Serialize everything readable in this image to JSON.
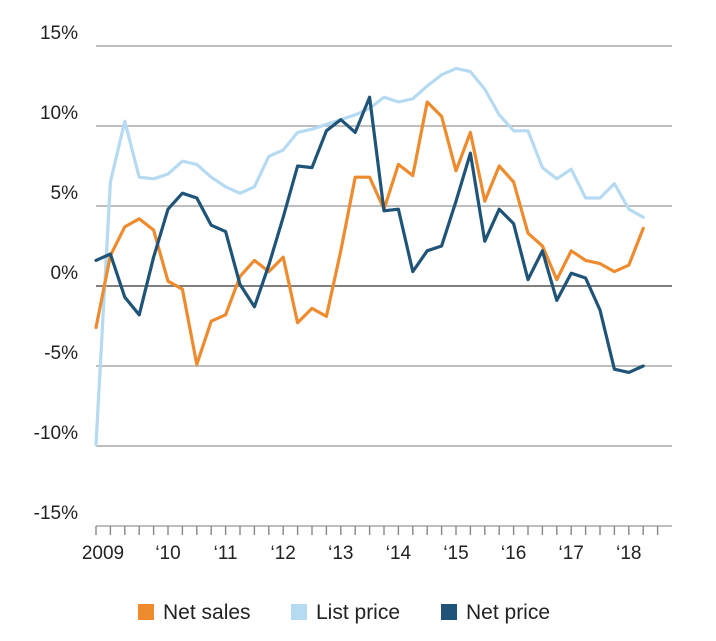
{
  "chart_data": {
    "type": "line",
    "y_tick_labels": [
      "15%",
      "10%",
      "5%",
      "0%",
      "-5%",
      "-10%",
      "-15%"
    ],
    "y_ticks": [
      15,
      10,
      5,
      0,
      -5,
      -10,
      -15
    ],
    "ylim": [
      -15,
      15
    ],
    "x_tick_labels": [
      "2009",
      "‘10",
      "‘11",
      "‘12",
      "‘13",
      "‘14",
      "‘15",
      "‘16",
      "‘17",
      "‘18"
    ],
    "x_tick_years": [
      2009,
      2010,
      2011,
      2012,
      2013,
      2014,
      2015,
      2016,
      2017,
      2018
    ],
    "xlim": [
      2009,
      2019
    ],
    "grid": true,
    "legend_position": "bottom",
    "series": [
      {
        "name": "Net sales",
        "color": "#EE8B2E",
        "x": [
          2009.0,
          2009.25,
          2009.5,
          2009.75,
          2010.0,
          2010.25,
          2010.5,
          2010.75,
          2011.0,
          2011.25,
          2011.5,
          2011.75,
          2012.0,
          2012.25,
          2012.5,
          2012.75,
          2013.0,
          2013.25,
          2013.5,
          2013.75,
          2014.0,
          2014.25,
          2014.5,
          2014.75,
          2015.0,
          2015.25,
          2015.5,
          2015.75,
          2016.0,
          2016.25,
          2016.5,
          2016.75,
          2017.0,
          2017.25,
          2017.5,
          2017.75,
          2018.0,
          2018.25,
          2018.5
        ],
        "values": [
          -2.6,
          1.9,
          3.7,
          4.2,
          3.5,
          0.3,
          -0.2,
          -4.9,
          -2.2,
          -1.8,
          0.6,
          1.6,
          0.9,
          1.8,
          -2.3,
          -1.4,
          -1.9,
          2.2,
          6.8,
          6.8,
          4.8,
          7.6,
          6.9,
          11.5,
          10.6,
          7.2,
          9.6,
          5.3,
          7.5,
          6.5,
          3.3,
          2.5,
          0.4,
          2.2,
          1.6,
          1.4,
          0.9,
          1.3,
          3.6
        ]
      },
      {
        "name": "List price",
        "color": "#B5DAF2",
        "x": [
          2009.0,
          2009.25,
          2009.5,
          2009.75,
          2010.0,
          2010.25,
          2010.5,
          2010.75,
          2011.0,
          2011.25,
          2011.5,
          2011.75,
          2012.0,
          2012.25,
          2012.5,
          2012.75,
          2013.0,
          2013.25,
          2013.5,
          2013.75,
          2014.0,
          2014.25,
          2014.5,
          2014.75,
          2015.0,
          2015.25,
          2015.5,
          2015.75,
          2016.0,
          2016.25,
          2016.5,
          2016.75,
          2017.0,
          2017.25,
          2017.5,
          2017.75,
          2018.0,
          2018.25,
          2018.5
        ],
        "values": [
          -9.9,
          6.5,
          10.3,
          6.8,
          6.7,
          7.0,
          7.8,
          7.6,
          6.8,
          6.2,
          5.8,
          6.2,
          8.1,
          8.5,
          9.6,
          9.8,
          10.1,
          10.4,
          10.7,
          11.1,
          11.8,
          11.5,
          11.7,
          12.5,
          13.2,
          13.6,
          13.4,
          12.3,
          10.7,
          9.7,
          9.7,
          7.4,
          6.7,
          7.3,
          5.5,
          5.5,
          6.4,
          4.8,
          4.3
        ]
      },
      {
        "name": "Net price",
        "color": "#1F5478",
        "x": [
          2009.0,
          2009.25,
          2009.5,
          2009.75,
          2010.0,
          2010.25,
          2010.5,
          2010.75,
          2011.0,
          2011.25,
          2011.5,
          2011.75,
          2012.0,
          2012.25,
          2012.5,
          2012.75,
          2013.0,
          2013.25,
          2013.5,
          2013.75,
          2014.0,
          2014.25,
          2014.5,
          2014.75,
          2015.0,
          2015.25,
          2015.5,
          2015.75,
          2016.0,
          2016.25,
          2016.5,
          2016.75,
          2017.0,
          2017.25,
          2017.5,
          2017.75,
          2018.0,
          2018.25,
          2018.5
        ],
        "values": [
          1.6,
          2.0,
          -0.7,
          -1.8,
          1.8,
          4.8,
          5.8,
          5.5,
          3.8,
          3.4,
          0.1,
          -1.3,
          1.3,
          4.3,
          7.5,
          7.4,
          9.7,
          10.4,
          9.6,
          11.8,
          4.7,
          4.8,
          0.9,
          2.2,
          2.5,
          5.3,
          8.3,
          2.8,
          4.8,
          3.9,
          0.4,
          2.2,
          -0.9,
          0.8,
          0.5,
          -1.5,
          -5.2,
          -5.4,
          -5.0
        ]
      }
    ]
  }
}
